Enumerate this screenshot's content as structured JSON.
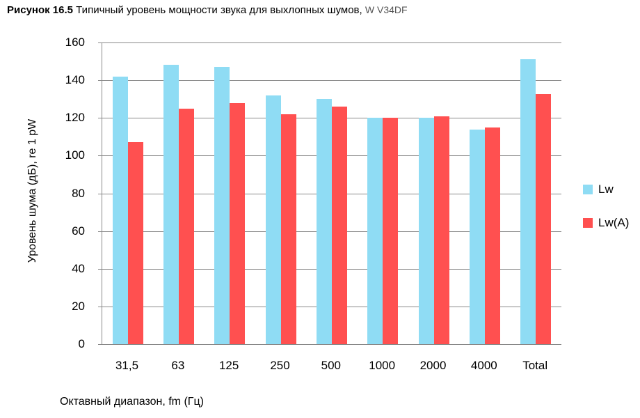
{
  "caption": {
    "label": "Рисунок 16.5",
    "text": " Типичный уровень мощности звука для выхлопных шумов, ",
    "suffix": "W V34DF"
  },
  "colors": {
    "Lw": "#8fdcf4",
    "LwA": "#ff5050"
  },
  "chart_data": {
    "type": "bar",
    "title": "Рисунок 16.5 Типичный уровень мощности звука для выхлопных шумов, W V34DF",
    "xlabel": "Октавный диапазон, fm (Гц)",
    "ylabel": "Уровень шума (дБ), re 1 pW",
    "ylim": [
      0,
      160
    ],
    "yticks": [
      0,
      20,
      40,
      60,
      80,
      100,
      120,
      140,
      160
    ],
    "grid": true,
    "legend_position": "right",
    "categories": [
      "31,5",
      "63",
      "125",
      "250",
      "500",
      "1000",
      "2000",
      "4000",
      "Total"
    ],
    "series": [
      {
        "name": "Lw",
        "color": "#8fdcf4",
        "values": [
          142,
          148,
          147,
          132,
          130,
          120,
          120,
          114,
          151
        ]
      },
      {
        "name": "Lw(A)",
        "color": "#ff5050",
        "values": [
          107,
          125,
          128,
          122,
          126,
          120,
          121,
          115,
          132.5
        ]
      }
    ]
  },
  "axis": {
    "y_ticks": [
      "0",
      "20",
      "40",
      "60",
      "80",
      "100",
      "120",
      "140",
      "160"
    ],
    "y_title": "Уровень шума (дБ), re 1 pW",
    "x_title": "Октавный диапазон, fm (Гц)"
  },
  "legend": [
    {
      "label": "Lw"
    },
    {
      "label": "Lw(A)"
    }
  ]
}
